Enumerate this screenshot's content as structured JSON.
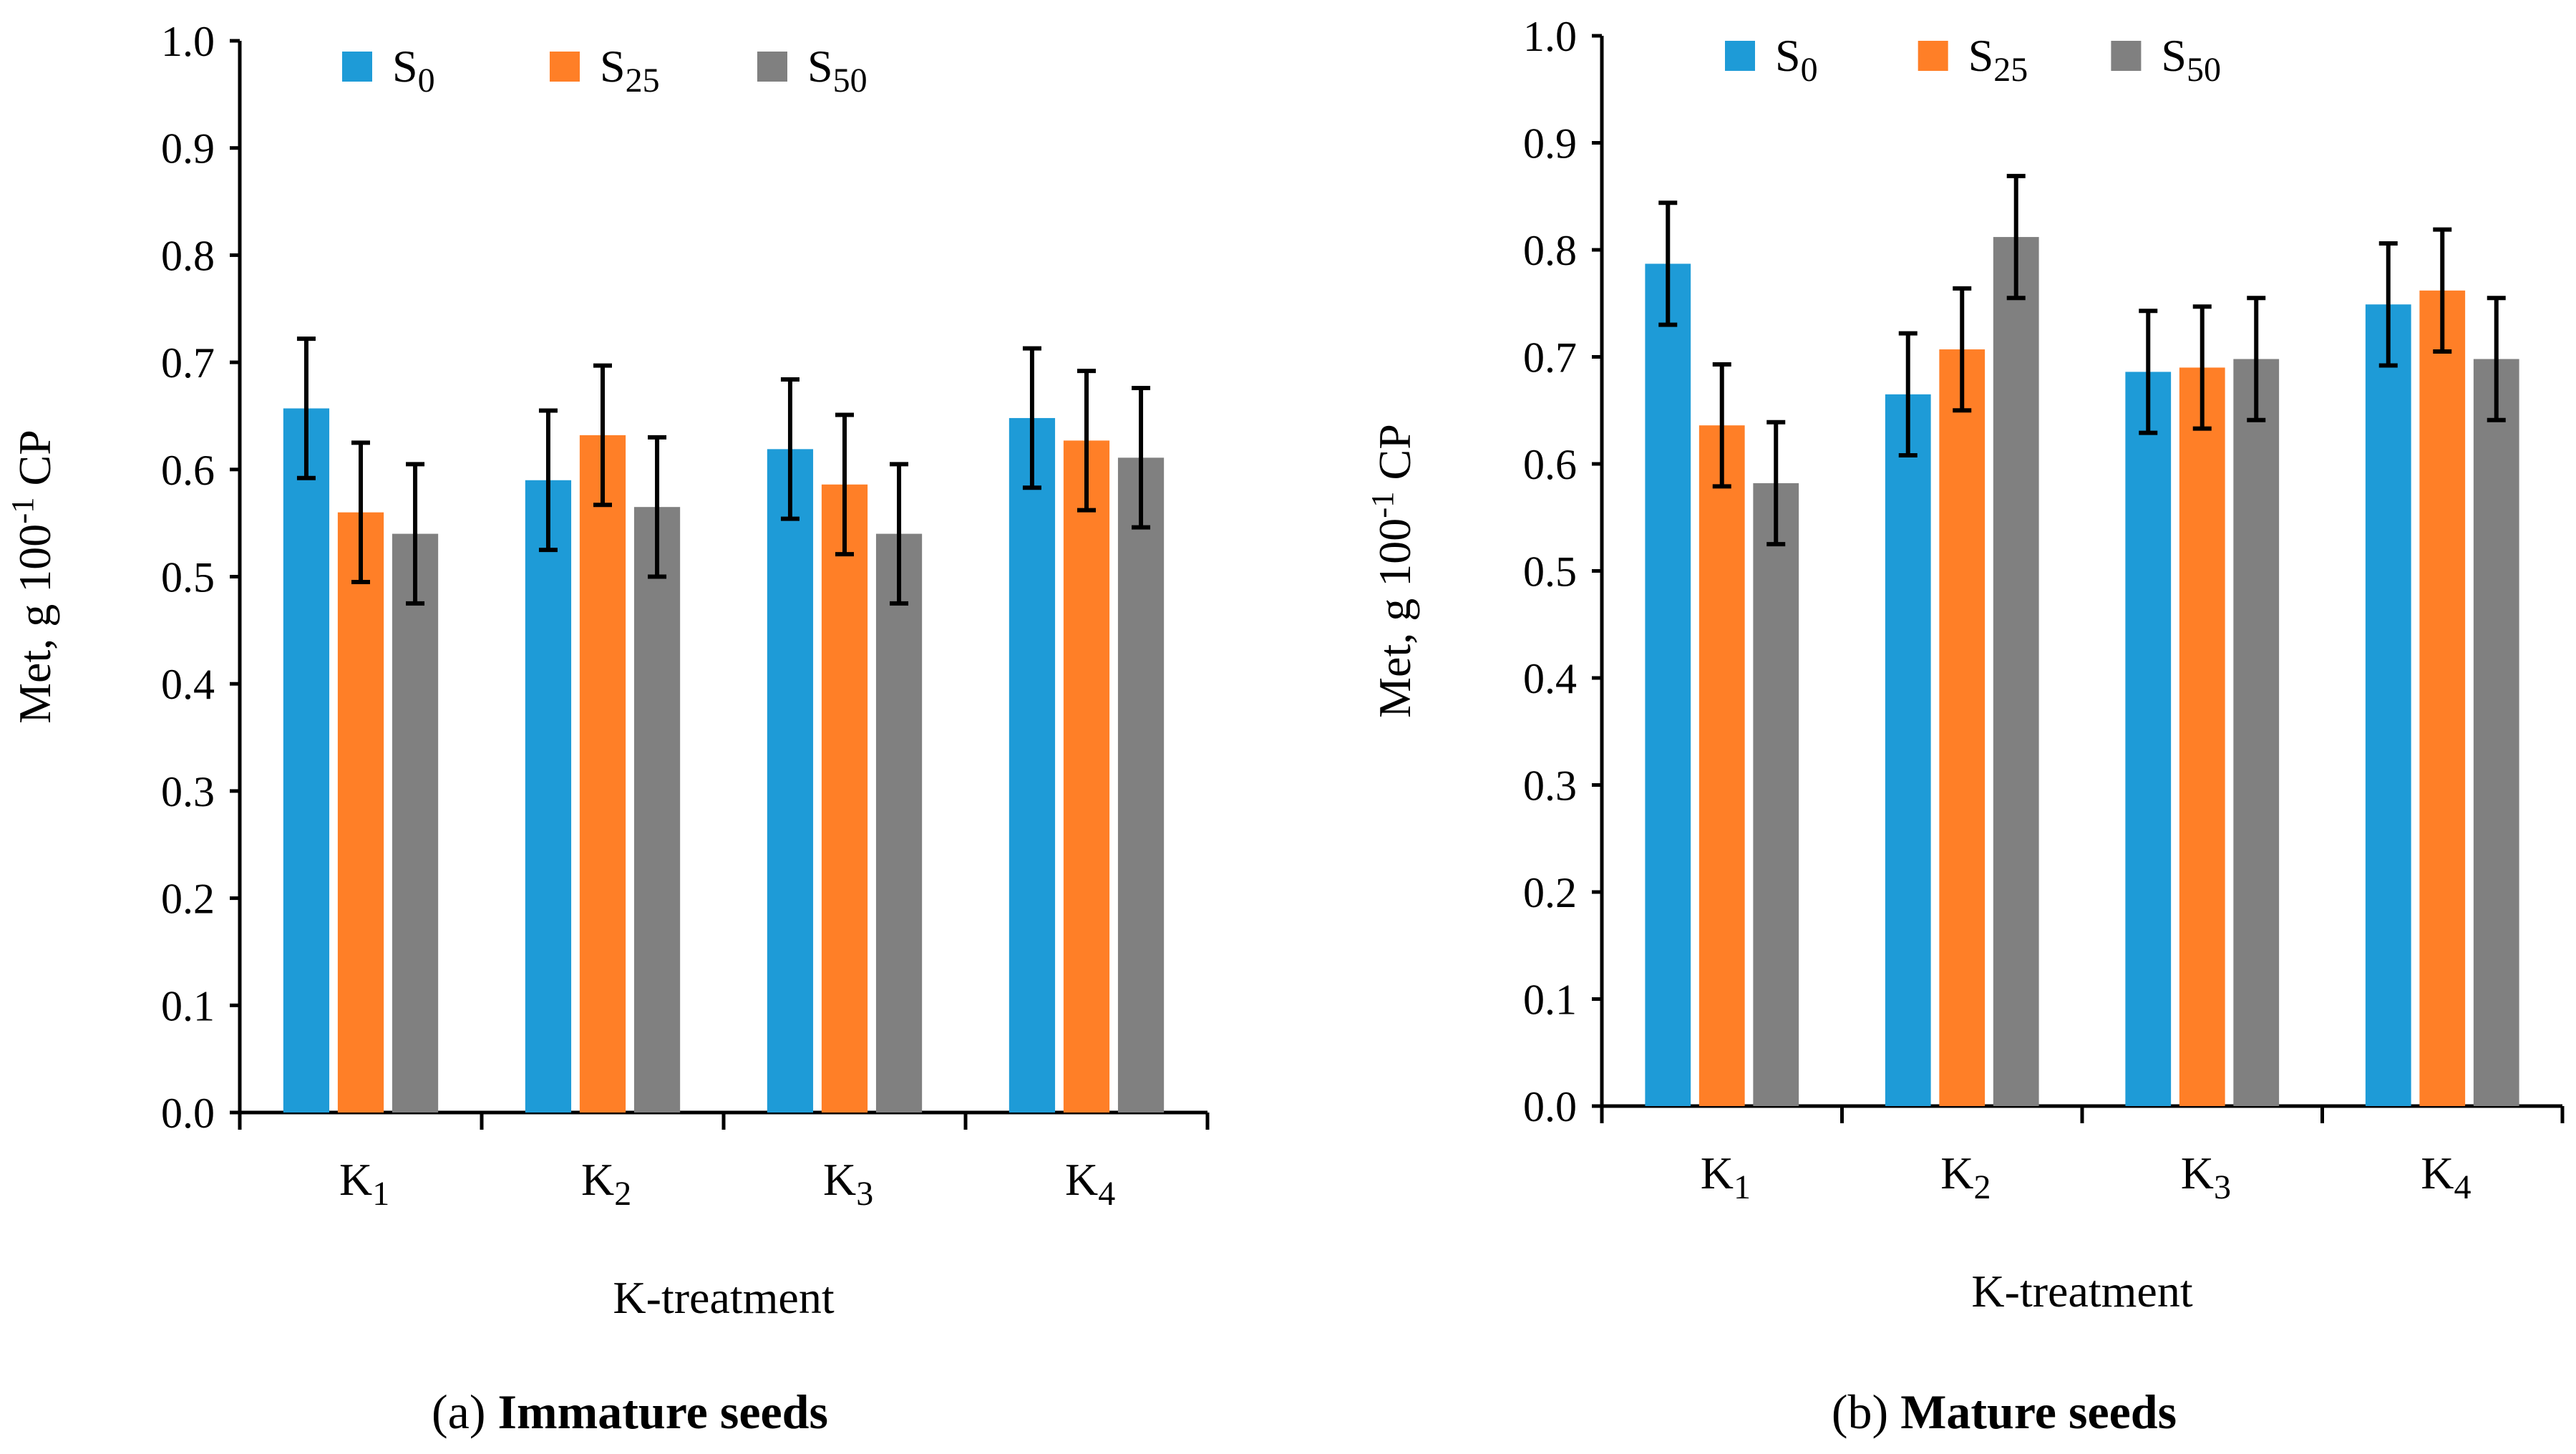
{
  "chart_data": [
    {
      "type": "bar",
      "panel": "(a)",
      "title": "Immature seeds",
      "xlabel": "K-treatment",
      "ylabel": {
        "main": "Met, g 100",
        "sup": "-1",
        "tail": " CP"
      },
      "categories": [
        "K1",
        "K2",
        "K3",
        "K4"
      ],
      "ylim": [
        0,
        1.0
      ],
      "yticks": [
        "0.0",
        "0.1",
        "0.2",
        "0.3",
        "0.4",
        "0.5",
        "0.6",
        "0.7",
        "0.8",
        "0.9",
        "1.0"
      ],
      "legend_position": "top-left",
      "series": [
        {
          "name": "S0",
          "color": "#1E9BD7",
          "values": [
            0.657,
            0.59,
            0.619,
            0.648
          ],
          "errors": [
            0.065,
            0.065,
            0.065,
            0.065
          ]
        },
        {
          "name": "S25",
          "color": "#FF7F27",
          "values": [
            0.56,
            0.632,
            0.586,
            0.627
          ],
          "errors": [
            0.065,
            0.065,
            0.065,
            0.065
          ]
        },
        {
          "name": "S50",
          "color": "#808080",
          "values": [
            0.54,
            0.565,
            0.54,
            0.611
          ],
          "errors": [
            0.065,
            0.065,
            0.065,
            0.065
          ]
        }
      ]
    },
    {
      "type": "bar",
      "panel": "(b)",
      "title": "Mature seeds",
      "xlabel": "K-treatment",
      "ylabel": {
        "main": "Met, g 100",
        "sup": "-1",
        "tail": " CP"
      },
      "categories": [
        "K1",
        "K2",
        "K3",
        "K4"
      ],
      "ylim": [
        0,
        1.0
      ],
      "yticks": [
        "0.0",
        "0.1",
        "0.2",
        "0.3",
        "0.4",
        "0.5",
        "0.6",
        "0.7",
        "0.8",
        "0.9",
        "1.0"
      ],
      "legend_position": "top-left",
      "series": [
        {
          "name": "S0",
          "color": "#1E9BD7",
          "values": [
            0.787,
            0.665,
            0.686,
            0.749
          ],
          "errors": [
            0.057,
            0.057,
            0.057,
            0.057
          ]
        },
        {
          "name": "S25",
          "color": "#FF7F27",
          "values": [
            0.636,
            0.707,
            0.69,
            0.762
          ],
          "errors": [
            0.057,
            0.057,
            0.057,
            0.057
          ]
        },
        {
          "name": "S50",
          "color": "#808080",
          "values": [
            0.582,
            0.812,
            0.698,
            0.698
          ],
          "errors": [
            0.057,
            0.057,
            0.057,
            0.057
          ]
        }
      ]
    }
  ]
}
